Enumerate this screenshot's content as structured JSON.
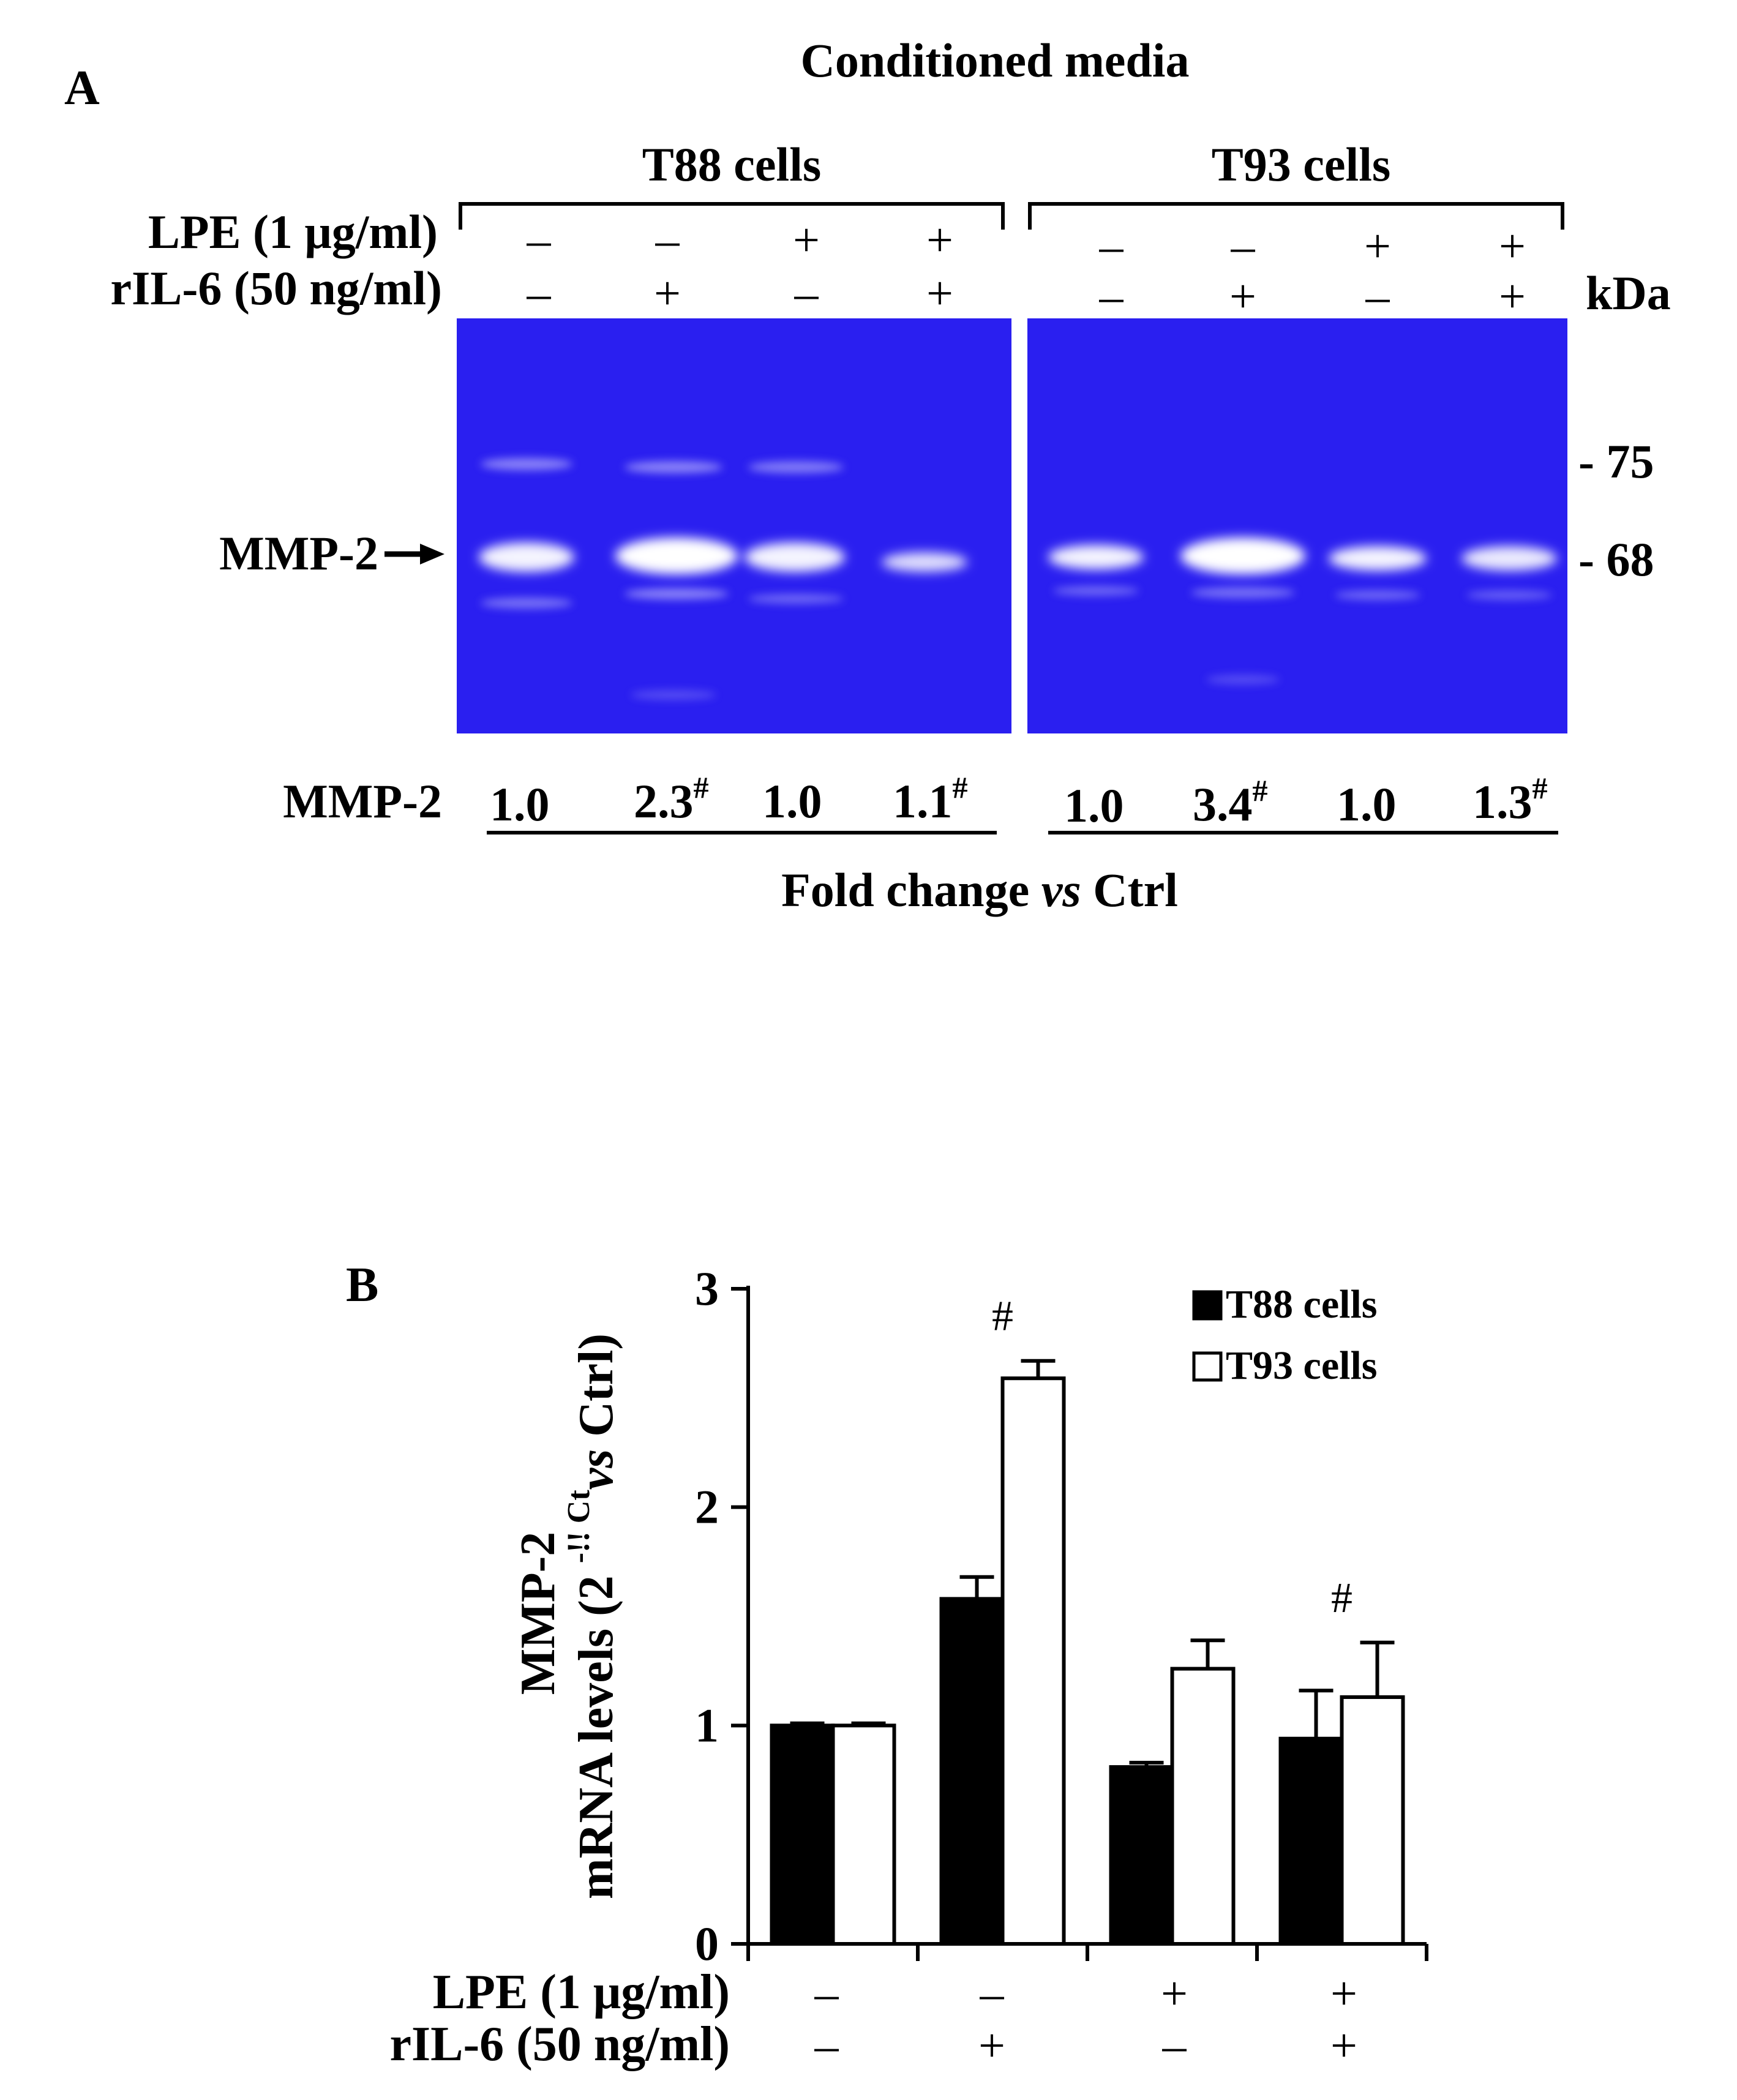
{
  "panel_a": {
    "label": "A",
    "title": "Conditioned media",
    "group_labels": [
      "T88 cells",
      "T93 cells"
    ],
    "row_labels": [
      "LPE (1 μg/ml)",
      "rIL-6 (50 ng/ml)"
    ],
    "lpe_signs": [
      "–",
      "–",
      "+",
      "+",
      "–",
      "–",
      "+",
      "+"
    ],
    "il6_signs": [
      "–",
      "+",
      "–",
      "+",
      "–",
      "+",
      "–",
      "+"
    ],
    "kda_label": "kDa",
    "markers": [
      "- 75",
      "- 68"
    ],
    "band_label": "MMP-2",
    "fold_row_label": "MMP-2",
    "fold_values": [
      "1.0",
      "2.3",
      "1.0",
      "1.1",
      "1.0",
      "3.4",
      "1.0",
      "1.3"
    ],
    "fold_marks": [
      "",
      "#",
      "",
      "#",
      "",
      "#",
      "",
      "#"
    ],
    "fold_caption_pre": "Fold change ",
    "fold_caption_italic": "vs",
    "fold_caption_post": " Ctrl",
    "gel_color": "#2a1ff0"
  },
  "panel_b": {
    "label": "B",
    "ylabel_line1": "MMP-2",
    "ylabel_line2_pre": "mRNA levels (2 ",
    "ylabel_line2_sup": "-!! Ct",
    "ylabel_line2_italic": "vs",
    "ylabel_line2_post": " Ctrl)",
    "x_row_labels": [
      "LPE (1 μg/ml)",
      "rIL-6 (50 ng/ml)"
    ],
    "x_lpe_signs": [
      "–",
      "–",
      "+",
      "+"
    ],
    "x_il6_signs": [
      "–",
      "+",
      "–",
      "+"
    ],
    "significance_mark": "#"
  },
  "chart_data": {
    "type": "bar",
    "categories": [
      "1",
      "2",
      "3",
      "4"
    ],
    "series": [
      {
        "name": "T88 cells",
        "values": [
          1.0,
          1.58,
          0.81,
          0.94
        ],
        "errors": [
          0.01,
          0.1,
          0.02,
          0.22
        ],
        "color": "#000000"
      },
      {
        "name": "T93 cells",
        "values": [
          1.0,
          2.59,
          1.26,
          1.13
        ],
        "errors": [
          0.01,
          0.08,
          0.13,
          0.25
        ],
        "color": "#ffffff"
      }
    ],
    "significance": [
      {
        "category": 1,
        "series": 1,
        "mark": "#"
      },
      {
        "category": 3,
        "series": 1,
        "mark": "#"
      }
    ],
    "ylim": [
      0,
      3
    ],
    "yticks": [
      0,
      1,
      2,
      3
    ],
    "legend_position": "top-right",
    "grid": false
  }
}
